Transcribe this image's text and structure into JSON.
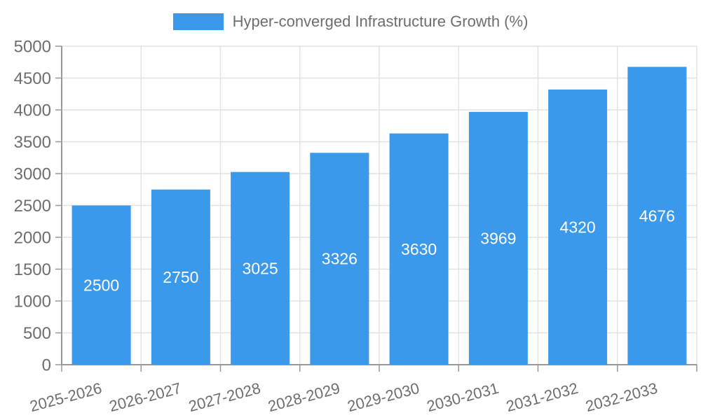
{
  "legend": {
    "label": "Hyper-converged Infrastructure Growth (%)"
  },
  "chart_data": {
    "type": "bar",
    "title": "",
    "series_name": "Hyper-converged Infrastructure Growth (%)",
    "categories": [
      "2025-2026",
      "2026-2027",
      "2027-2028",
      "2028-2029",
      "2029-2030",
      "2030-2031",
      "2031-2032",
      "2032-2033"
    ],
    "values": [
      2500,
      2750,
      3025,
      3326,
      3630,
      3969,
      4320,
      4676
    ],
    "xlabel": "",
    "ylabel": "",
    "ylim": [
      0,
      5000
    ],
    "y_tick_interval": 500,
    "y_tick_labels": [
      "0",
      "500",
      "1000",
      "1500",
      "2000",
      "2500",
      "3000",
      "3500",
      "4000",
      "4500",
      "5000"
    ],
    "grid": true,
    "legend_position": "top-center",
    "value_label_position": "inside-middle"
  },
  "colors": {
    "bar": "#3B99EC",
    "axis_line": "#999999",
    "tick_line": "#999999",
    "grid_line": "#E2E2E2",
    "tick_text": "#6E6E6E",
    "value_label_text": "#FFFFFF",
    "background": "#FFFFFF"
  }
}
